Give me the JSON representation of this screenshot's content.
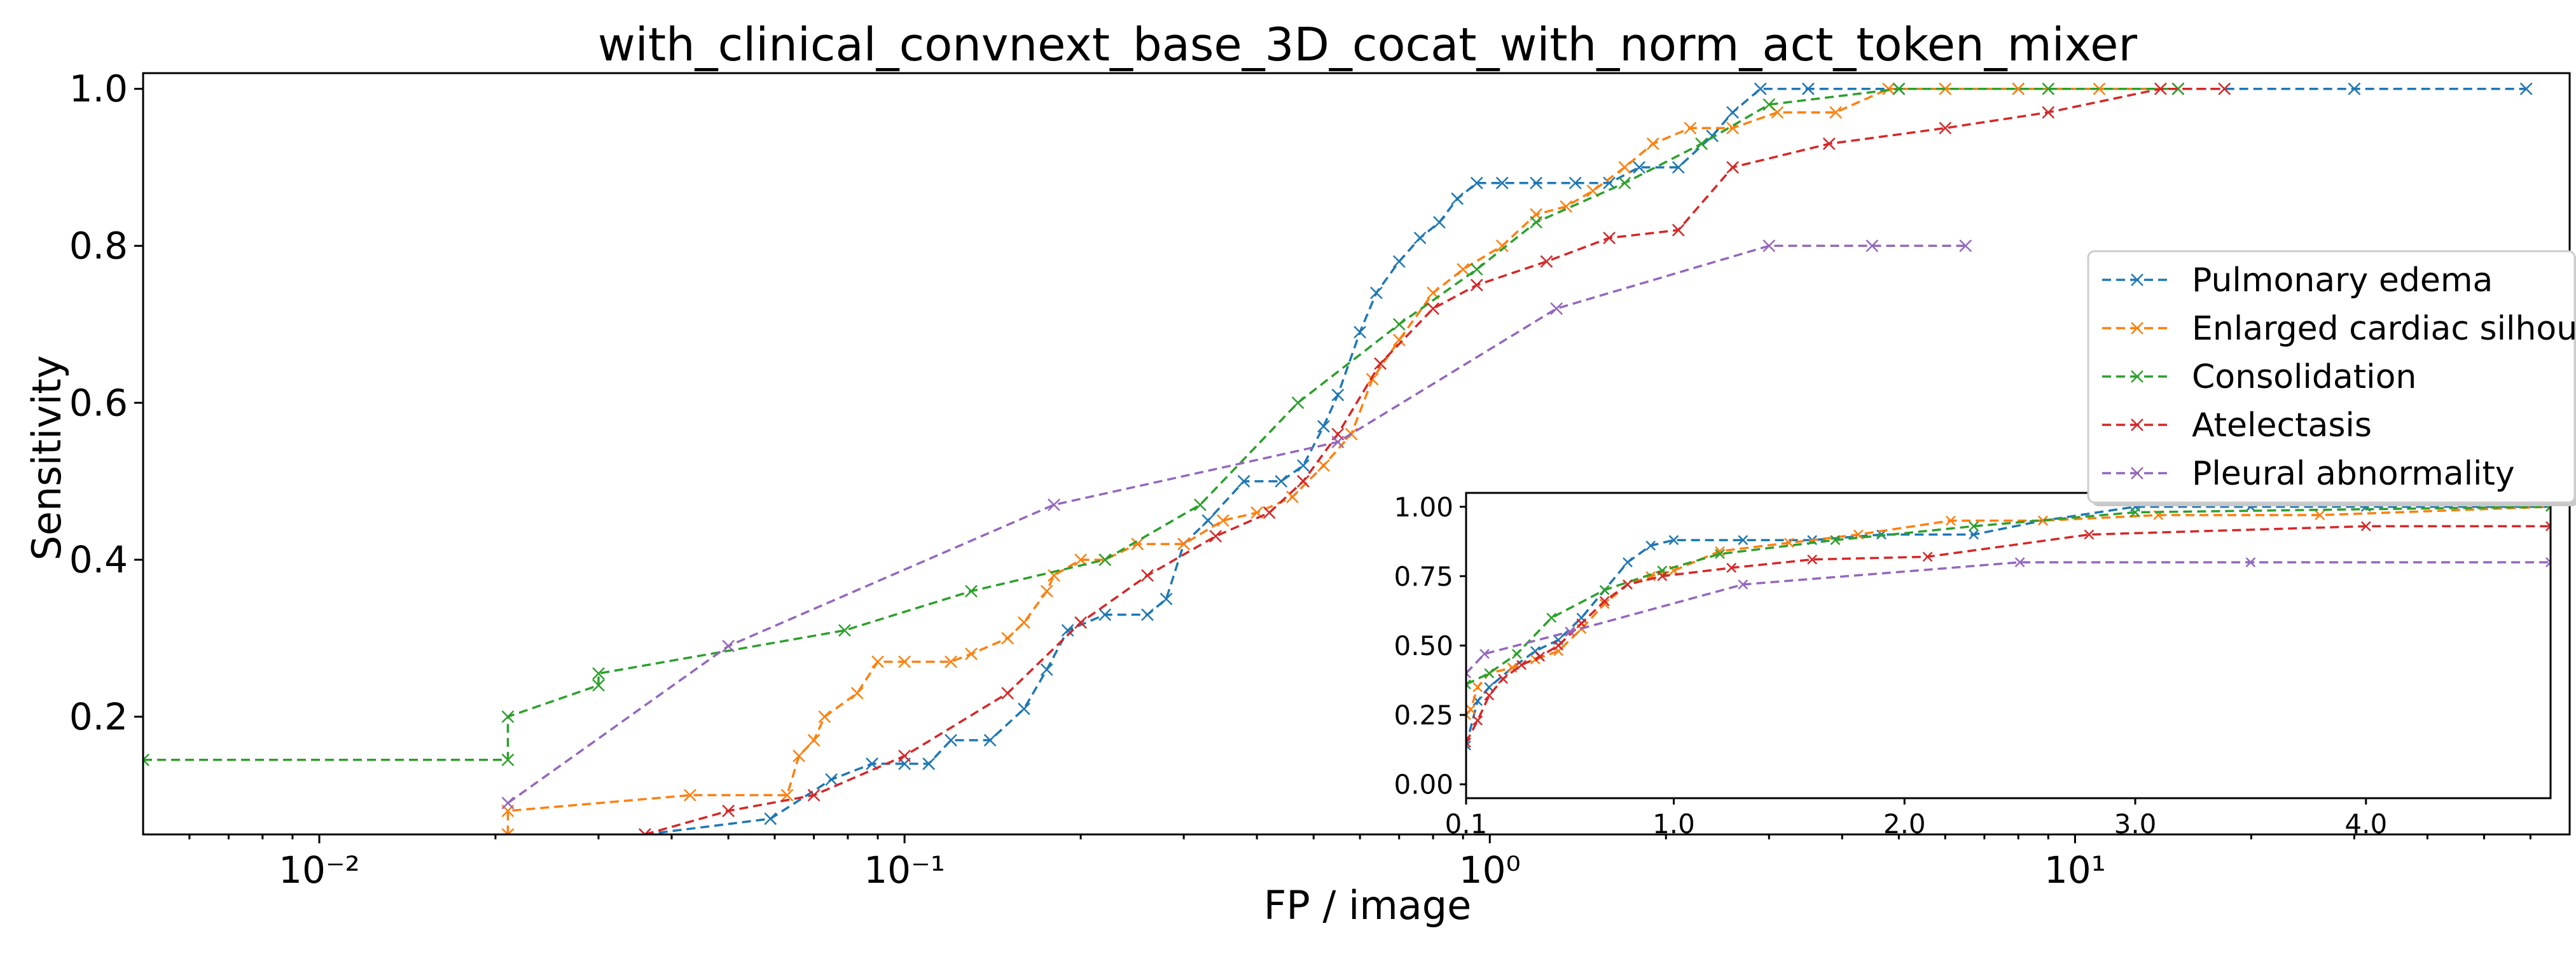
{
  "chart_data": [
    {
      "type": "line",
      "title": "with_clinical_convnext_base_3D_cocat_with_norm_act_token_mixer",
      "xlabel": "FP / image",
      "ylabel": "Sensitivity",
      "xscale": "log",
      "xlim": [
        0.005,
        70
      ],
      "ylim": [
        0.05,
        1.02
      ],
      "xticks": [
        0.01,
        0.1,
        1,
        10
      ],
      "xtick_labels": [
        "10⁻²",
        "10⁻¹",
        "10⁰",
        "10¹"
      ],
      "yticks": [
        0.2,
        0.4,
        0.6,
        0.8,
        1.0
      ],
      "ytick_labels": [
        "0.2",
        "0.4",
        "0.6",
        "0.8",
        "1.0"
      ],
      "grid": false,
      "legend": "right",
      "marker": "x",
      "linestyle": "dashed",
      "series": [
        {
          "name": "Pulmonary edema",
          "color": "#1f77b4",
          "points": [
            [
              0.036,
              0.05
            ],
            [
              0.059,
              0.07
            ],
            [
              0.075,
              0.12
            ],
            [
              0.088,
              0.14
            ],
            [
              0.1,
              0.14
            ],
            [
              0.11,
              0.14
            ],
            [
              0.12,
              0.17
            ],
            [
              0.14,
              0.17
            ],
            [
              0.16,
              0.21
            ],
            [
              0.175,
              0.26
            ],
            [
              0.19,
              0.31
            ],
            [
              0.22,
              0.33
            ],
            [
              0.26,
              0.33
            ],
            [
              0.28,
              0.35
            ],
            [
              0.3,
              0.42
            ],
            [
              0.33,
              0.45
            ],
            [
              0.38,
              0.5
            ],
            [
              0.44,
              0.5
            ],
            [
              0.48,
              0.52
            ],
            [
              0.52,
              0.57
            ],
            [
              0.55,
              0.61
            ],
            [
              0.6,
              0.69
            ],
            [
              0.64,
              0.74
            ],
            [
              0.7,
              0.78
            ],
            [
              0.76,
              0.81
            ],
            [
              0.82,
              0.83
            ],
            [
              0.88,
              0.86
            ],
            [
              0.95,
              0.88
            ],
            [
              1.05,
              0.88
            ],
            [
              1.2,
              0.88
            ],
            [
              1.4,
              0.88
            ],
            [
              1.6,
              0.88
            ],
            [
              1.8,
              0.9
            ],
            [
              2.1,
              0.9
            ],
            [
              2.4,
              0.94
            ],
            [
              2.6,
              0.97
            ],
            [
              2.9,
              1.0
            ],
            [
              3.5,
              1.0
            ],
            [
              5,
              1.0
            ],
            [
              8,
              1.0
            ],
            [
              15,
              1.0
            ],
            [
              30,
              1.0
            ],
            [
              59,
              1.0
            ]
          ]
        },
        {
          "name": "Enlarged cardiac silhouette",
          "color": "#ff7f0e",
          "points": [
            [
              0.021,
              0.05
            ],
            [
              0.021,
              0.08
            ],
            [
              0.043,
              0.1
            ],
            [
              0.063,
              0.1
            ],
            [
              0.066,
              0.15
            ],
            [
              0.07,
              0.17
            ],
            [
              0.073,
              0.2
            ],
            [
              0.083,
              0.23
            ],
            [
              0.09,
              0.27
            ],
            [
              0.1,
              0.27
            ],
            [
              0.12,
              0.27
            ],
            [
              0.13,
              0.28
            ],
            [
              0.15,
              0.3
            ],
            [
              0.16,
              0.32
            ],
            [
              0.175,
              0.36
            ],
            [
              0.18,
              0.38
            ],
            [
              0.2,
              0.4
            ],
            [
              0.22,
              0.4
            ],
            [
              0.25,
              0.42
            ],
            [
              0.3,
              0.42
            ],
            [
              0.35,
              0.45
            ],
            [
              0.4,
              0.46
            ],
            [
              0.46,
              0.48
            ],
            [
              0.52,
              0.52
            ],
            [
              0.58,
              0.56
            ],
            [
              0.63,
              0.63
            ],
            [
              0.7,
              0.68
            ],
            [
              0.8,
              0.74
            ],
            [
              0.9,
              0.77
            ],
            [
              1.05,
              0.8
            ],
            [
              1.2,
              0.84
            ],
            [
              1.35,
              0.85
            ],
            [
              1.5,
              0.87
            ],
            [
              1.7,
              0.9
            ],
            [
              1.9,
              0.93
            ],
            [
              2.2,
              0.95
            ],
            [
              2.6,
              0.95
            ],
            [
              3.1,
              0.97
            ],
            [
              3.9,
              0.97
            ],
            [
              4.8,
              1.0
            ],
            [
              6,
              1.0
            ],
            [
              8,
              1.0
            ],
            [
              11,
              1.0
            ],
            [
              15,
              1.0
            ]
          ]
        },
        {
          "name": "Consolidation",
          "color": "#2ca02c",
          "points": [
            [
              0.005,
              0.145
            ],
            [
              0.021,
              0.145
            ],
            [
              0.021,
              0.2
            ],
            [
              0.03,
              0.24
            ],
            [
              0.03,
              0.255
            ],
            [
              0.079,
              0.31
            ],
            [
              0.13,
              0.36
            ],
            [
              0.22,
              0.4
            ],
            [
              0.32,
              0.47
            ],
            [
              0.47,
              0.6
            ],
            [
              0.7,
              0.7
            ],
            [
              0.95,
              0.77
            ],
            [
              1.2,
              0.83
            ],
            [
              1.7,
              0.88
            ],
            [
              2.3,
              0.93
            ],
            [
              3.0,
              0.98
            ],
            [
              5.0,
              1.0
            ],
            [
              9,
              1.0
            ],
            [
              15,
              1.0
            ]
          ]
        },
        {
          "name": "Atelectasis",
          "color": "#d62728",
          "points": [
            [
              0.036,
              0.05
            ],
            [
              0.05,
              0.08
            ],
            [
              0.07,
              0.1
            ],
            [
              0.1,
              0.15
            ],
            [
              0.15,
              0.23
            ],
            [
              0.2,
              0.32
            ],
            [
              0.26,
              0.38
            ],
            [
              0.34,
              0.43
            ],
            [
              0.42,
              0.46
            ],
            [
              0.48,
              0.5
            ],
            [
              0.55,
              0.56
            ],
            [
              0.65,
              0.65
            ],
            [
              0.8,
              0.72
            ],
            [
              0.95,
              0.75
            ],
            [
              1.25,
              0.78
            ],
            [
              1.6,
              0.81
            ],
            [
              2.1,
              0.82
            ],
            [
              2.6,
              0.9
            ],
            [
              3.8,
              0.93
            ],
            [
              6,
              0.95
            ],
            [
              9,
              0.97
            ],
            [
              14,
              1.0
            ],
            [
              18,
              1.0
            ]
          ]
        },
        {
          "name": "Pleural abnormality",
          "color": "#9467bd",
          "points": [
            [
              0.021,
              0.09
            ],
            [
              0.05,
              0.29
            ],
            [
              0.18,
              0.47
            ],
            [
              0.55,
              0.55
            ],
            [
              1.3,
              0.72
            ],
            [
              3.0,
              0.8
            ],
            [
              4.5,
              0.8
            ],
            [
              6.5,
              0.8
            ]
          ]
        }
      ]
    },
    {
      "type": "line",
      "title": "",
      "xlabel": "",
      "ylabel": "",
      "xlim": [
        0.1,
        4.8
      ],
      "ylim": [
        -0.05,
        1.05
      ],
      "xticks": [
        0.1,
        1.0,
        2.0,
        3.0,
        4.0
      ],
      "xtick_labels": [
        "0.1",
        "1.0",
        "2.0",
        "3.0",
        "4.0"
      ],
      "yticks": [
        0.0,
        0.25,
        0.5,
        0.75,
        1.0
      ],
      "ytick_labels": [
        "0.00",
        "0.25",
        "0.50",
        "0.75",
        "1.00"
      ],
      "grid": false,
      "legend": "none",
      "marker": "x",
      "linestyle": "dashed",
      "series": [
        {
          "color": "#1f77b4",
          "points": [
            [
              0.1,
              0.14
            ],
            [
              0.15,
              0.3
            ],
            [
              0.2,
              0.35
            ],
            [
              0.3,
              0.42
            ],
            [
              0.4,
              0.48
            ],
            [
              0.5,
              0.52
            ],
            [
              0.6,
              0.6
            ],
            [
              0.7,
              0.7
            ],
            [
              0.8,
              0.8
            ],
            [
              0.9,
              0.86
            ],
            [
              1.0,
              0.88
            ],
            [
              1.3,
              0.88
            ],
            [
              1.6,
              0.88
            ],
            [
              1.9,
              0.9
            ],
            [
              2.3,
              0.9
            ],
            [
              2.6,
              0.95
            ],
            [
              3.0,
              1.0
            ],
            [
              3.5,
              1.0
            ],
            [
              4.0,
              1.0
            ],
            [
              4.8,
              1.0
            ]
          ]
        },
        {
          "color": "#ff7f0e",
          "points": [
            [
              0.1,
              0.25
            ],
            [
              0.12,
              0.27
            ],
            [
              0.15,
              0.35
            ],
            [
              0.2,
              0.4
            ],
            [
              0.3,
              0.42
            ],
            [
              0.4,
              0.45
            ],
            [
              0.5,
              0.48
            ],
            [
              0.6,
              0.56
            ],
            [
              0.7,
              0.65
            ],
            [
              0.8,
              0.72
            ],
            [
              0.9,
              0.75
            ],
            [
              1.0,
              0.77
            ],
            [
              1.2,
              0.84
            ],
            [
              1.5,
              0.87
            ],
            [
              1.8,
              0.9
            ],
            [
              2.2,
              0.95
            ],
            [
              2.6,
              0.95
            ],
            [
              3.1,
              0.97
            ],
            [
              3.8,
              0.97
            ],
            [
              4.8,
              1.0
            ]
          ]
        },
        {
          "color": "#2ca02c",
          "points": [
            [
              0.1,
              0.36
            ],
            [
              0.2,
              0.4
            ],
            [
              0.32,
              0.47
            ],
            [
              0.47,
              0.6
            ],
            [
              0.7,
              0.7
            ],
            [
              0.95,
              0.77
            ],
            [
              1.2,
              0.83
            ],
            [
              1.7,
              0.88
            ],
            [
              2.3,
              0.93
            ],
            [
              3.0,
              0.98
            ],
            [
              4.8,
              1.0
            ]
          ]
        },
        {
          "color": "#d62728",
          "points": [
            [
              0.1,
              0.15
            ],
            [
              0.15,
              0.23
            ],
            [
              0.2,
              0.32
            ],
            [
              0.26,
              0.38
            ],
            [
              0.34,
              0.43
            ],
            [
              0.42,
              0.46
            ],
            [
              0.5,
              0.5
            ],
            [
              0.6,
              0.58
            ],
            [
              0.7,
              0.66
            ],
            [
              0.8,
              0.72
            ],
            [
              0.95,
              0.75
            ],
            [
              1.25,
              0.78
            ],
            [
              1.6,
              0.81
            ],
            [
              2.1,
              0.82
            ],
            [
              2.8,
              0.9
            ],
            [
              4.0,
              0.93
            ],
            [
              4.8,
              0.93
            ]
          ]
        },
        {
          "color": "#9467bd",
          "points": [
            [
              0.1,
              0.4
            ],
            [
              0.18,
              0.47
            ],
            [
              0.55,
              0.55
            ],
            [
              1.3,
              0.72
            ],
            [
              2.5,
              0.8
            ],
            [
              3.5,
              0.8
            ],
            [
              4.8,
              0.8
            ]
          ]
        }
      ]
    }
  ]
}
